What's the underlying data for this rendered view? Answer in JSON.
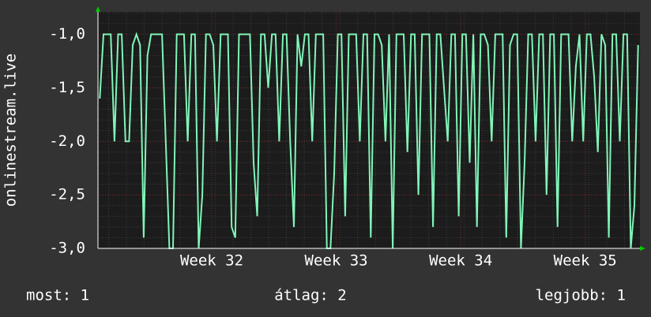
{
  "chart_data": {
    "type": "line",
    "y_label": "onlinestream.live",
    "series": [
      {
        "name": "onlinestream.live",
        "color": "#80f5b8",
        "values": [
          -1.6,
          -1,
          -1,
          -1,
          -2,
          -1,
          -1,
          -2,
          -2,
          -1.1,
          -1,
          -1.1,
          -2.9,
          -1.2,
          -1,
          -1,
          -1,
          -1,
          -2,
          -3,
          -3,
          -1,
          -1,
          -1,
          -2,
          -1,
          -1,
          -3,
          -2.5,
          -1,
          -1,
          -1.1,
          -2,
          -1,
          -1,
          -1,
          -2.8,
          -2.9,
          -1,
          -1,
          -1,
          -1,
          -2.2,
          -2.7,
          -1,
          -1,
          -1.5,
          -1,
          -1,
          -2,
          -1,
          -1,
          -2,
          -2.8,
          -1,
          -1.3,
          -1,
          -1,
          -2,
          -1,
          -1,
          -1,
          -3,
          -3,
          -2.3,
          -1,
          -1,
          -2.7,
          -1,
          -1,
          -1,
          -2,
          -1,
          -1,
          -2.9,
          -1,
          -1,
          -1.1,
          -2,
          -1,
          -3,
          -1,
          -1,
          -1,
          -2.1,
          -1,
          -1,
          -2.5,
          -1,
          -1,
          -1,
          -2.8,
          -1,
          -1,
          -1.5,
          -2,
          -1,
          -1,
          -2.7,
          -1,
          -1,
          -2.2,
          -1,
          -2.8,
          -1,
          -1,
          -1.1,
          -2,
          -1,
          -1,
          -1,
          -2.9,
          -1.1,
          -1,
          -1,
          -3,
          -2.2,
          -1,
          -1,
          -2,
          -1,
          -1,
          -2.5,
          -1,
          -1,
          -2.8,
          -1,
          -1,
          -1,
          -2,
          -1.3,
          -1,
          -2,
          -1,
          -1,
          -1.4,
          -2.1,
          -1,
          -1.1,
          -2.9,
          -1,
          -1,
          -2,
          -1,
          -1,
          -3,
          -2.6,
          -1.1
        ]
      }
    ],
    "xlim": [
      31.086,
      35.44
    ],
    "xticks": [
      {
        "value": 32,
        "label": "Week 32"
      },
      {
        "value": 33,
        "label": "Week 33"
      },
      {
        "value": 34,
        "label": "Week 34"
      },
      {
        "value": 35,
        "label": "Week 35"
      }
    ],
    "ylim": [
      -3,
      -0.79
    ],
    "yticks": [
      {
        "value": -3,
        "label": "-3,0"
      },
      {
        "value": -2.5,
        "label": "-2,5"
      },
      {
        "value": -2,
        "label": "-2,0"
      },
      {
        "value": -1.5,
        "label": "-1,5"
      },
      {
        "value": -1,
        "label": "-1,0"
      }
    ],
    "grid": true,
    "footer": [
      "most: 1",
      "átlag: 2",
      "legjobb: 1"
    ]
  }
}
